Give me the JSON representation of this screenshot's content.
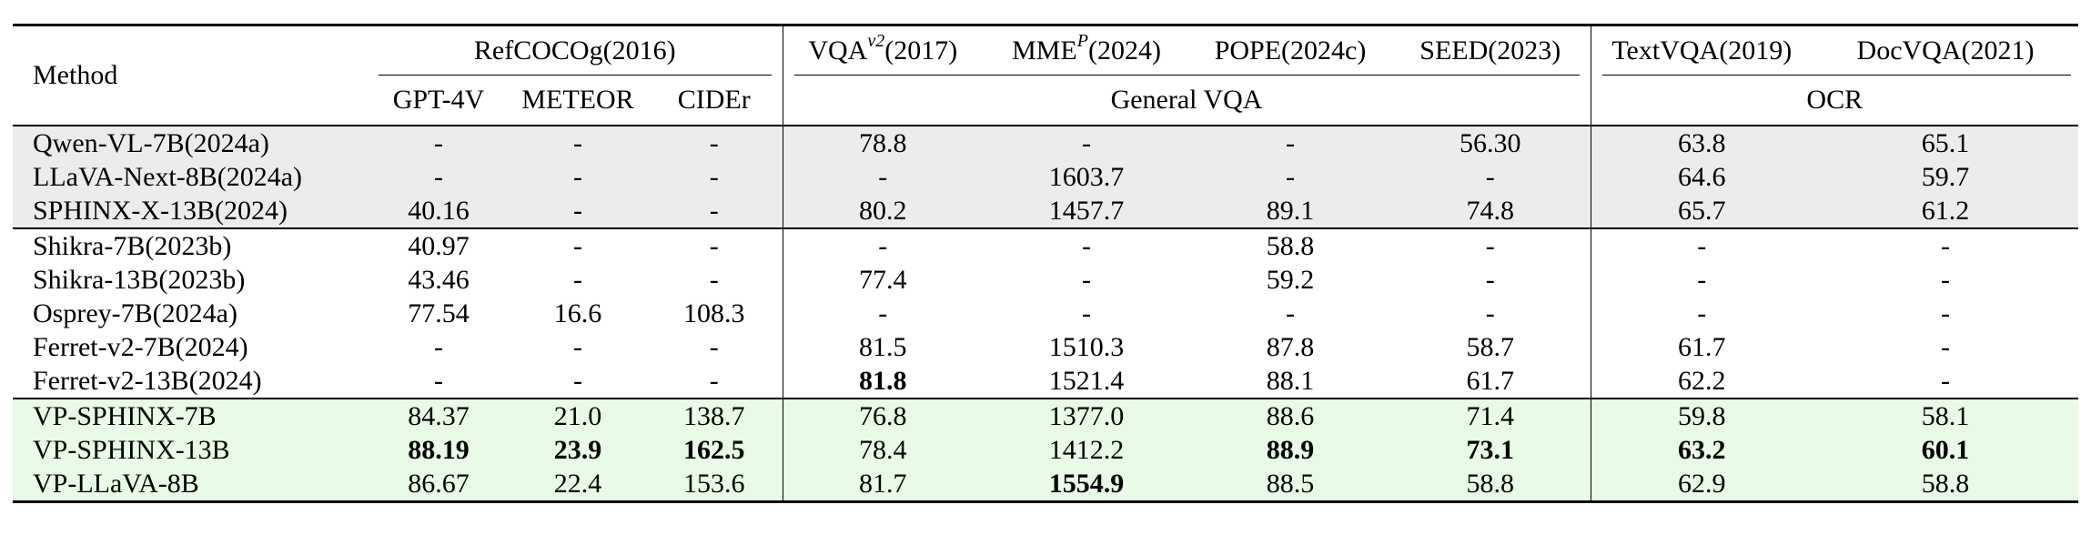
{
  "header": {
    "method": "Method",
    "groups": {
      "refcocog": "RefCOCOg(2016)",
      "vqa": {
        "base": "VQA",
        "sup": "v2",
        "rest": "(2017)"
      },
      "mme": {
        "base": "MME",
        "sup": "P",
        "rest": "(2024)"
      },
      "pope": "POPE(2024c)",
      "seed": "SEED(2023)",
      "textvqa": "TextVQA(2019)",
      "docvqa": "DocVQA(2021)"
    },
    "sub": {
      "gpt4v": "GPT-4V",
      "meteor": "METEOR",
      "cider": "CIDEr",
      "general_vqa": "General VQA",
      "ocr": "OCR"
    }
  },
  "rows": [
    {
      "method": "Qwen-VL-7B(2024a)",
      "cells": [
        "-",
        "-",
        "-",
        "78.8",
        "-",
        "-",
        "56.30",
        "63.8",
        "65.1"
      ],
      "bold": []
    },
    {
      "method": "LLaVA-Next-8B(2024a)",
      "cells": [
        "-",
        "-",
        "-",
        "-",
        "1603.7",
        "-",
        "-",
        "64.6",
        "59.7"
      ],
      "bold": []
    },
    {
      "method": "SPHINX-X-13B(2024)",
      "cells": [
        "40.16",
        "-",
        "-",
        "80.2",
        "1457.7",
        "89.1",
        "74.8",
        "65.7",
        "61.2"
      ],
      "bold": []
    },
    {
      "method": "Shikra-7B(2023b)",
      "cells": [
        "40.97",
        "-",
        "-",
        "-",
        "-",
        "58.8",
        "-",
        "-",
        "-"
      ],
      "bold": []
    },
    {
      "method": "Shikra-13B(2023b)",
      "cells": [
        "43.46",
        "-",
        "-",
        "77.4",
        "-",
        "59.2",
        "-",
        "-",
        "-"
      ],
      "bold": []
    },
    {
      "method": "Osprey-7B(2024a)",
      "cells": [
        "77.54",
        "16.6",
        "108.3",
        "-",
        "-",
        "-",
        "-",
        "-",
        "-"
      ],
      "bold": []
    },
    {
      "method": "Ferret-v2-7B(2024)",
      "cells": [
        "-",
        "-",
        "-",
        "81.5",
        "1510.3",
        "87.8",
        "58.7",
        "61.7",
        "-"
      ],
      "bold": []
    },
    {
      "method": "Ferret-v2-13B(2024)",
      "cells": [
        "-",
        "-",
        "-",
        "81.8",
        "1521.4",
        "88.1",
        "61.7",
        "62.2",
        "-"
      ],
      "bold": [
        3
      ]
    },
    {
      "method": "VP-SPHINX-7B",
      "cells": [
        "84.37",
        "21.0",
        "138.7",
        "76.8",
        "1377.0",
        "88.6",
        "71.4",
        "59.8",
        "58.1"
      ],
      "bold": []
    },
    {
      "method": "VP-SPHINX-13B",
      "cells": [
        "88.19",
        "23.9",
        "162.5",
        "78.4",
        "1412.2",
        "88.9",
        "73.1",
        "63.2",
        "60.1"
      ],
      "bold": [
        0,
        1,
        2,
        5,
        6,
        7,
        8
      ]
    },
    {
      "method": "VP-LLaVA-8B",
      "cells": [
        "86.67",
        "22.4",
        "153.6",
        "81.7",
        "1554.9",
        "88.5",
        "58.8",
        "62.9",
        "58.8"
      ],
      "bold": [
        4
      ]
    }
  ]
}
